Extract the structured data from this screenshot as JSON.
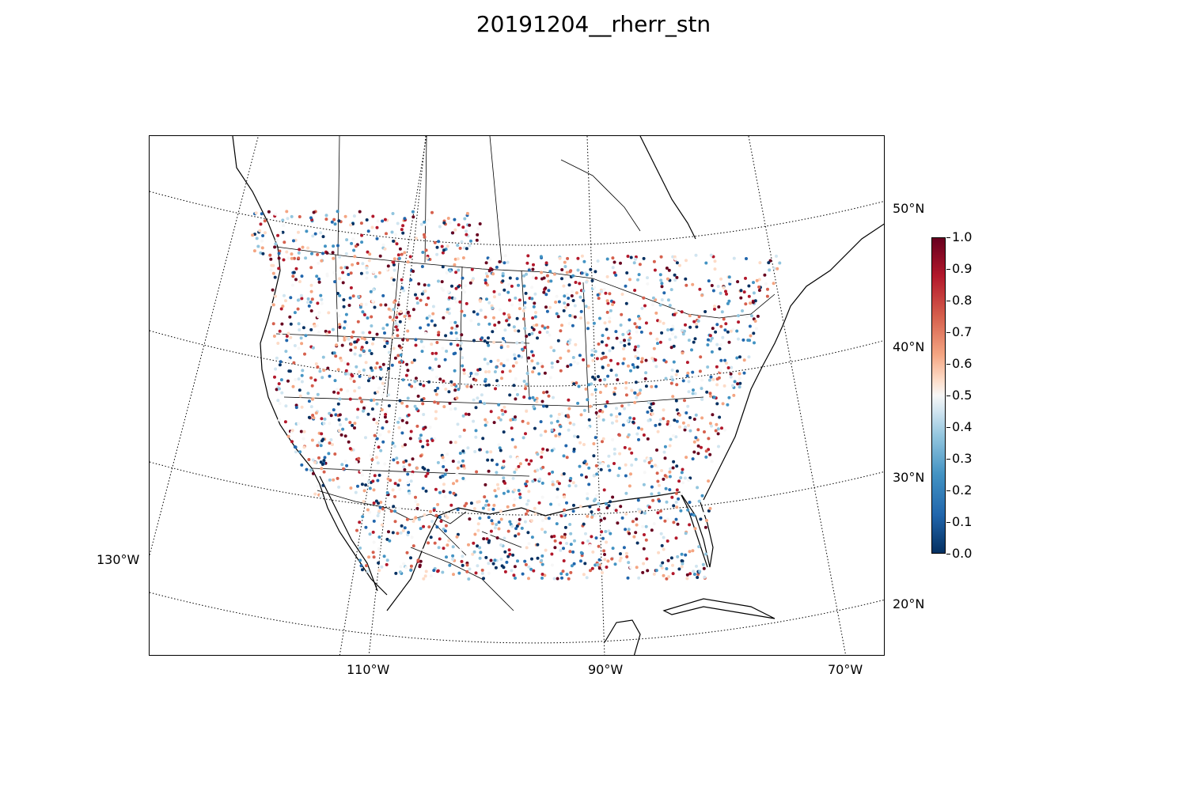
{
  "title": "20191204__rherr_stn",
  "map": {
    "projection": "lambert-conformal",
    "region": "North America",
    "parallel_labels": [
      "50°N",
      "40°N",
      "30°N",
      "20°N"
    ],
    "meridian_labels": [
      "130°W",
      "110°W",
      "90°W",
      "70°W"
    ],
    "gridlines": "dotted",
    "borders": [
      "coastlines",
      "country",
      "state/province"
    ]
  },
  "colorbar": {
    "colormap": "RdBu_r",
    "min": 0.0,
    "max": 1.0,
    "ticks": [
      "0.0",
      "0.1",
      "0.2",
      "0.3",
      "0.4",
      "0.5",
      "0.6",
      "0.7",
      "0.8",
      "0.9",
      "1.0"
    ],
    "colors": [
      "#053061",
      "#2166ac",
      "#4393c3",
      "#92c5de",
      "#d1e5f0",
      "#f7f7f7",
      "#fddbc7",
      "#f4a582",
      "#d6604d",
      "#b2182b",
      "#67001f"
    ]
  }
}
